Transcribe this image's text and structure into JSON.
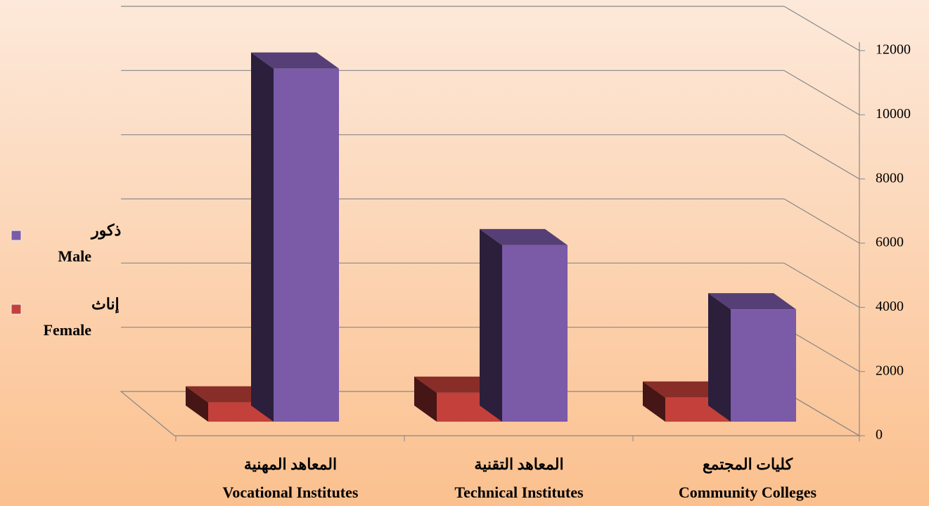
{
  "chart_data": {
    "type": "bar3d",
    "categories": [
      "Vocational Institutes",
      "Technical Institutes",
      "Community Colleges"
    ],
    "categories_ar": [
      "المعاهد المهنية",
      "المعاهد التقنية",
      "كليات المجتمع"
    ],
    "series": [
      {
        "name": "Female",
        "name_ar": "إناث",
        "color": "#c4403b",
        "values": [
          600,
          900,
          750
        ]
      },
      {
        "name": "Male",
        "name_ar": "ذكور",
        "color": "#7b5aa8",
        "values": [
          11000,
          5500,
          3500
        ]
      }
    ],
    "ylim": [
      0,
      12000
    ],
    "yticks": [
      0,
      2000,
      4000,
      6000,
      8000,
      10000,
      12000
    ],
    "grid": true
  }
}
